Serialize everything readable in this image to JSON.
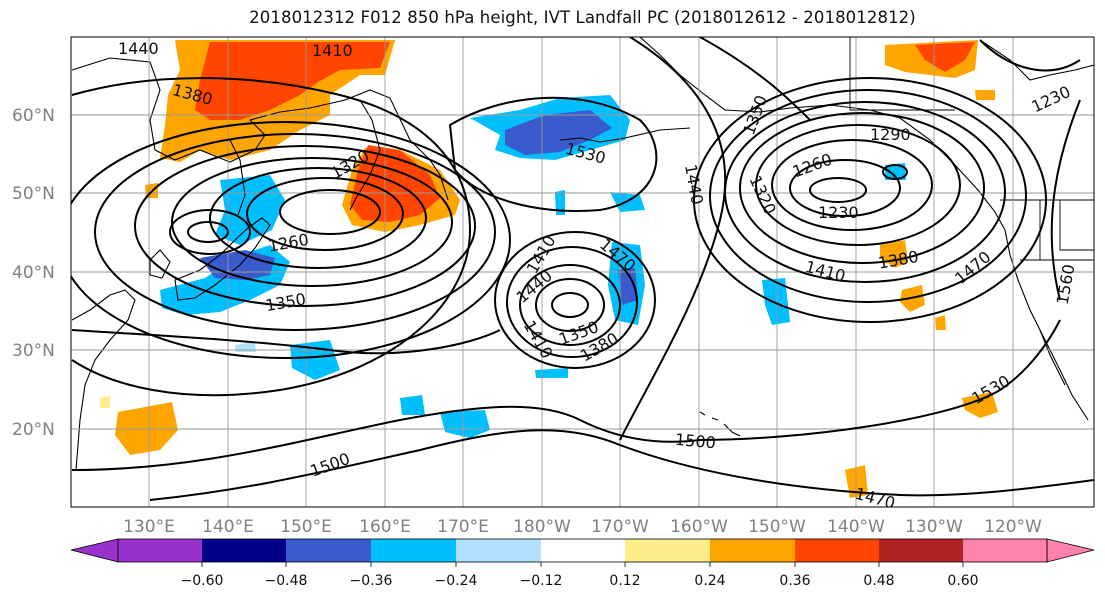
{
  "title": "2018012312 F012 850 hPa height, IVT Landfall PC (2018012612 - 2018012812)",
  "map": {
    "lat_labels": [
      "60°N",
      "50°N",
      "40°N",
      "30°N",
      "20°N"
    ],
    "lon_labels": [
      "130°E",
      "140°E",
      "150°E",
      "160°E",
      "170°E",
      "180°W",
      "170°W",
      "160°W",
      "150°W",
      "140°W",
      "130°W",
      "120°W"
    ],
    "contour_labels": [
      "1440",
      "1410",
      "1380",
      "1350",
      "1260",
      "1320",
      "1230",
      "1410",
      "1380",
      "1470",
      "1560",
      "1530",
      "1440",
      "1470",
      "1410",
      "1350",
      "1380",
      "1500",
      "1500",
      "1470",
      "1530",
      "1320",
      "1260",
      "1290",
      "1350",
      "1410",
      "1440",
      "1230"
    ]
  },
  "colorbar": {
    "ticks": [
      "−0.60",
      "−0.48",
      "−0.36",
      "−0.24",
      "−0.12",
      "0.12",
      "0.24",
      "0.36",
      "0.48",
      "0.60"
    ],
    "colors": [
      "#9932cc",
      "#00008b",
      "#3a5bcc",
      "#00bfff",
      "#b0e2ff",
      "#ffffff",
      "#ffec8b",
      "#ffa500",
      "#ff4500",
      "#b22222",
      "#ff82ab"
    ]
  },
  "palette": {
    "pos1": "#ffec8b",
    "pos2": "#ffa500",
    "pos3": "#ff4500",
    "pos4": "#b22222",
    "neg1": "#b0e2ff",
    "neg2": "#00bfff",
    "neg3": "#3a5bcc",
    "neg4": "#00008b"
  }
}
